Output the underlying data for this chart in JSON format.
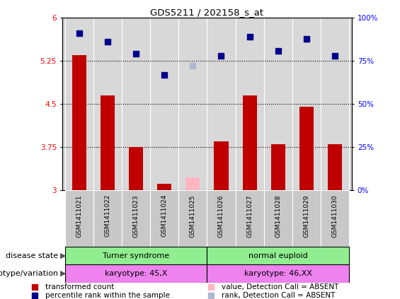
{
  "title": "GDS5211 / 202158_s_at",
  "samples": [
    "GSM1411021",
    "GSM1411022",
    "GSM1411023",
    "GSM1411024",
    "GSM1411025",
    "GSM1411026",
    "GSM1411027",
    "GSM1411028",
    "GSM1411029",
    "GSM1411030"
  ],
  "bar_values": [
    5.35,
    4.65,
    3.75,
    3.1,
    null,
    3.85,
    4.65,
    3.8,
    4.45,
    3.8
  ],
  "bar_absent_values": [
    null,
    null,
    null,
    null,
    3.22,
    null,
    null,
    null,
    null,
    null
  ],
  "rank_values": [
    91,
    86,
    79,
    67,
    null,
    78,
    89,
    81,
    88,
    78
  ],
  "rank_absent_values": [
    null,
    null,
    null,
    null,
    72,
    null,
    null,
    null,
    null,
    null
  ],
  "bar_color": "#c00000",
  "bar_absent_color": "#ffb6c1",
  "rank_color": "#00008b",
  "rank_absent_color": "#b0b8d0",
  "ylim_left": [
    3,
    6
  ],
  "ylim_right": [
    0,
    100
  ],
  "yticks_left": [
    3,
    3.75,
    4.5,
    5.25,
    6
  ],
  "yticks_right": [
    0,
    25,
    50,
    75,
    100
  ],
  "ytick_labels_right": [
    "0%",
    "25%",
    "50%",
    "75%",
    "100%"
  ],
  "hlines": [
    3.75,
    4.5,
    5.25
  ],
  "disease_state_label": "disease state",
  "disease_state_groups": [
    {
      "label": "Turner syndrome",
      "start": 0,
      "end": 4,
      "color": "#90ee90"
    },
    {
      "label": "normal euploid",
      "start": 5,
      "end": 9,
      "color": "#90ee90"
    }
  ],
  "genotype_label": "genotype/variation",
  "genotype_groups": [
    {
      "label": "karyotype: 45,X",
      "start": 0,
      "end": 4,
      "color": "#ee82ee"
    },
    {
      "label": "karyotype: 46,XX",
      "start": 5,
      "end": 9,
      "color": "#ee82ee"
    }
  ],
  "legend_items": [
    {
      "label": "transformed count",
      "color": "#c00000"
    },
    {
      "label": "percentile rank within the sample",
      "color": "#00008b"
    },
    {
      "label": "value, Detection Call = ABSENT",
      "color": "#ffb6c1"
    },
    {
      "label": "rank, Detection Call = ABSENT",
      "color": "#b0b8d0"
    }
  ],
  "bar_width": 0.5,
  "rank_marker_size": 6,
  "background_color": "#ffffff",
  "plot_bg_color": "#d8d8d8",
  "sample_box_color": "#c8c8c8"
}
